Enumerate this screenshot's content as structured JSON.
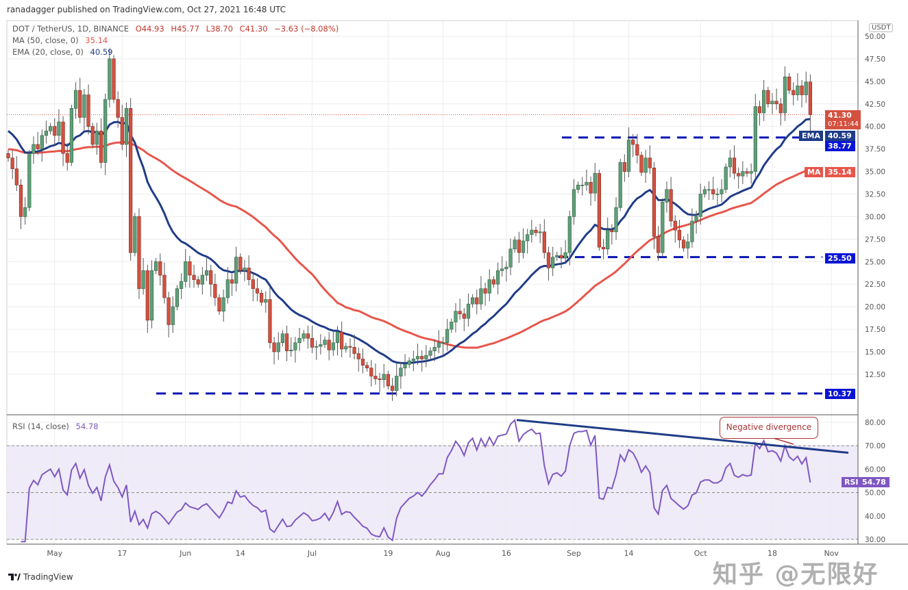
{
  "header": {
    "published": "ranadagger published on TradingView.com, Oct 27, 2021 16:48 UTC",
    "symbol": "DOT / TetherUS, 1D, BINANCE",
    "open": "O44.93",
    "high": "H45.77",
    "low": "L38.70",
    "close": "C41.30",
    "change": "−3.63 (−8.08%)",
    "ma_label": "MA (50, close, 0)",
    "ma_value": "35.14",
    "ema_label": "EMA (20, close, 0)",
    "ema_value": "40.59"
  },
  "price_axis": {
    "unit": "USDT"
  },
  "tags": {
    "last_price": "41.30",
    "countdown": "07:11:44",
    "ema_name": "EMA",
    "ema_value": "40.59",
    "resistance": "38.77",
    "ma_name": "MA",
    "ma_value": "35.14",
    "support": "25.50",
    "low_support": "10.37",
    "rsi_name": "RSI",
    "rsi_value": "54.78"
  },
  "rsi_pane": {
    "label": "RSI (14, close)",
    "value": "54.78",
    "annotation": "Negative divergence"
  },
  "footer": {
    "brand": "TradingView"
  },
  "watermark": "知乎 @无限好",
  "colors": {
    "up": "#5f9f78",
    "down": "#d3513f",
    "ema": "#1f3c88",
    "ma": "#e8554a",
    "rsi": "#7e57c2",
    "level": "#0a14b4"
  },
  "chart_data": {
    "type": "candlestick",
    "title": "DOT / TetherUS, 1D, BINANCE",
    "start_date": "2021-04-20",
    "end_date": "2021-10-27",
    "close": [
      36.5,
      35.3,
      33.5,
      30,
      31,
      37,
      38,
      37.5,
      39,
      39.5,
      40,
      39,
      40.5,
      37,
      36,
      42,
      44,
      41,
      43.5,
      40,
      38,
      39.5,
      36,
      43,
      47.5,
      43,
      41,
      38,
      42,
      26,
      30,
      22,
      24,
      18.5,
      24,
      25,
      23.5,
      21,
      18,
      20,
      22,
      22.8,
      25,
      23.5,
      23,
      22.5,
      23.5,
      24,
      22.5,
      21,
      19.5,
      21,
      23,
      22.6,
      25.5,
      24,
      24.3,
      23,
      22,
      21.5,
      20.5,
      20.8,
      16,
      15,
      16,
      17,
      15.1,
      15.2,
      16,
      16.5,
      17,
      16.5,
      15.5,
      15.6,
      15.8,
      16.3,
      15.2,
      16,
      17.2,
      15.3,
      15.6,
      15.5,
      14.8,
      14.2,
      13.5,
      13.2,
      12.3,
      12,
      11.9,
      12.5,
      11.2,
      10.7,
      12.3,
      13.2,
      13.6,
      14,
      14.2,
      14.5,
      14.2,
      14.6,
      15.1,
      15.5,
      16,
      16,
      17.5,
      18.3,
      19.5,
      19.2,
      18.7,
      20.3,
      21,
      20.3,
      22,
      21.5,
      23,
      22.5,
      24,
      24.2,
      24.4,
      26.4,
      27.4,
      26,
      27.3,
      28,
      28.5,
      28.2,
      28.3,
      26,
      24.3,
      25.5,
      25.7,
      25.4,
      26,
      30,
      33,
      33.5,
      33.5,
      33.8,
      32.6,
      34.8,
      26.6,
      26.4,
      28.5,
      28.3,
      31,
      36,
      35,
      38.5,
      38,
      36.8,
      34.9,
      36.5,
      35.4,
      27.8,
      26,
      31.6,
      33,
      29.5,
      28.5,
      27.4,
      26.5,
      27.2,
      29.5,
      30,
      32.5,
      33,
      33,
      32.5,
      32.5,
      33,
      35.5,
      36.5,
      34.8,
      34.5,
      35,
      34.8,
      35,
      42.2,
      41.5,
      44,
      42.5,
      42.8,
      42.5,
      41.5,
      45.5,
      44,
      43.5,
      44.5,
      43.5,
      44.93,
      41.3
    ],
    "last_candle": {
      "open": 44.93,
      "high": 45.77,
      "low": 38.7,
      "close": 41.3
    },
    "indicators": {
      "ma50_last": 35.14,
      "ema20_last": 40.59,
      "rsi14_last": 54.78
    },
    "horizontal_levels": [
      38.77,
      25.5,
      10.37
    ],
    "rsi_trendline": {
      "from": {
        "date": "2021-08-20",
        "value": 81
      },
      "to": {
        "date": "2021-11-01",
        "value": 67
      }
    },
    "y_ticks": [
      "50.00",
      "47.50",
      "45.00",
      "42.50",
      "40.00",
      "37.50",
      "35.00",
      "32.50",
      "30.00",
      "27.50",
      "25.00",
      "22.50",
      "20.00",
      "17.50",
      "15.00",
      "12.50"
    ],
    "rsi_ticks": [
      "80.00",
      "70.00",
      "60.00",
      "50.00",
      "40.00",
      "30.00"
    ],
    "x_ticks": [
      {
        "label": "May",
        "day": 11
      },
      {
        "label": "17",
        "day": 27
      },
      {
        "label": "Jun",
        "day": 42
      },
      {
        "label": "14",
        "day": 55
      },
      {
        "label": "Jul",
        "day": 72
      },
      {
        "label": "19",
        "day": 90
      },
      {
        "label": "Aug",
        "day": 103
      },
      {
        "label": "16",
        "day": 118
      },
      {
        "label": "Sep",
        "day": 134
      },
      {
        "label": "14",
        "day": 147
      },
      {
        "label": "Oct",
        "day": 164
      },
      {
        "label": "18",
        "day": 181
      },
      {
        "label": "Nov",
        "day": 195
      }
    ],
    "ylim": [
      10,
      51
    ],
    "rsi_ylim": [
      28,
      82
    ]
  }
}
